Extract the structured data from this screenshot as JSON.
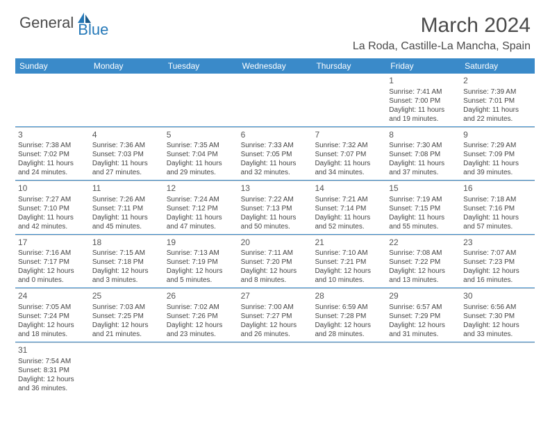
{
  "logo": {
    "general": "General",
    "blue": "Blue"
  },
  "title": {
    "month": "March 2024",
    "location": "La Roda, Castille-La Mancha, Spain"
  },
  "colors": {
    "header_bg": "#3a8ac9",
    "header_text": "#ffffff",
    "row_divider": "#3a8ac9",
    "cell_divider": "#d0d0d0",
    "text": "#444444",
    "logo_gray": "#4a4a4a",
    "logo_blue": "#2478b8",
    "background": "#ffffff"
  },
  "weekdays": [
    "Sunday",
    "Monday",
    "Tuesday",
    "Wednesday",
    "Thursday",
    "Friday",
    "Saturday"
  ],
  "weeks": [
    [
      null,
      null,
      null,
      null,
      null,
      {
        "n": "1",
        "sr": "Sunrise: 7:41 AM",
        "ss": "Sunset: 7:00 PM",
        "d1": "Daylight: 11 hours",
        "d2": "and 19 minutes."
      },
      {
        "n": "2",
        "sr": "Sunrise: 7:39 AM",
        "ss": "Sunset: 7:01 PM",
        "d1": "Daylight: 11 hours",
        "d2": "and 22 minutes."
      }
    ],
    [
      {
        "n": "3",
        "sr": "Sunrise: 7:38 AM",
        "ss": "Sunset: 7:02 PM",
        "d1": "Daylight: 11 hours",
        "d2": "and 24 minutes."
      },
      {
        "n": "4",
        "sr": "Sunrise: 7:36 AM",
        "ss": "Sunset: 7:03 PM",
        "d1": "Daylight: 11 hours",
        "d2": "and 27 minutes."
      },
      {
        "n": "5",
        "sr": "Sunrise: 7:35 AM",
        "ss": "Sunset: 7:04 PM",
        "d1": "Daylight: 11 hours",
        "d2": "and 29 minutes."
      },
      {
        "n": "6",
        "sr": "Sunrise: 7:33 AM",
        "ss": "Sunset: 7:05 PM",
        "d1": "Daylight: 11 hours",
        "d2": "and 32 minutes."
      },
      {
        "n": "7",
        "sr": "Sunrise: 7:32 AM",
        "ss": "Sunset: 7:07 PM",
        "d1": "Daylight: 11 hours",
        "d2": "and 34 minutes."
      },
      {
        "n": "8",
        "sr": "Sunrise: 7:30 AM",
        "ss": "Sunset: 7:08 PM",
        "d1": "Daylight: 11 hours",
        "d2": "and 37 minutes."
      },
      {
        "n": "9",
        "sr": "Sunrise: 7:29 AM",
        "ss": "Sunset: 7:09 PM",
        "d1": "Daylight: 11 hours",
        "d2": "and 39 minutes."
      }
    ],
    [
      {
        "n": "10",
        "sr": "Sunrise: 7:27 AM",
        "ss": "Sunset: 7:10 PM",
        "d1": "Daylight: 11 hours",
        "d2": "and 42 minutes."
      },
      {
        "n": "11",
        "sr": "Sunrise: 7:26 AM",
        "ss": "Sunset: 7:11 PM",
        "d1": "Daylight: 11 hours",
        "d2": "and 45 minutes."
      },
      {
        "n": "12",
        "sr": "Sunrise: 7:24 AM",
        "ss": "Sunset: 7:12 PM",
        "d1": "Daylight: 11 hours",
        "d2": "and 47 minutes."
      },
      {
        "n": "13",
        "sr": "Sunrise: 7:22 AM",
        "ss": "Sunset: 7:13 PM",
        "d1": "Daylight: 11 hours",
        "d2": "and 50 minutes."
      },
      {
        "n": "14",
        "sr": "Sunrise: 7:21 AM",
        "ss": "Sunset: 7:14 PM",
        "d1": "Daylight: 11 hours",
        "d2": "and 52 minutes."
      },
      {
        "n": "15",
        "sr": "Sunrise: 7:19 AM",
        "ss": "Sunset: 7:15 PM",
        "d1": "Daylight: 11 hours",
        "d2": "and 55 minutes."
      },
      {
        "n": "16",
        "sr": "Sunrise: 7:18 AM",
        "ss": "Sunset: 7:16 PM",
        "d1": "Daylight: 11 hours",
        "d2": "and 57 minutes."
      }
    ],
    [
      {
        "n": "17",
        "sr": "Sunrise: 7:16 AM",
        "ss": "Sunset: 7:17 PM",
        "d1": "Daylight: 12 hours",
        "d2": "and 0 minutes."
      },
      {
        "n": "18",
        "sr": "Sunrise: 7:15 AM",
        "ss": "Sunset: 7:18 PM",
        "d1": "Daylight: 12 hours",
        "d2": "and 3 minutes."
      },
      {
        "n": "19",
        "sr": "Sunrise: 7:13 AM",
        "ss": "Sunset: 7:19 PM",
        "d1": "Daylight: 12 hours",
        "d2": "and 5 minutes."
      },
      {
        "n": "20",
        "sr": "Sunrise: 7:11 AM",
        "ss": "Sunset: 7:20 PM",
        "d1": "Daylight: 12 hours",
        "d2": "and 8 minutes."
      },
      {
        "n": "21",
        "sr": "Sunrise: 7:10 AM",
        "ss": "Sunset: 7:21 PM",
        "d1": "Daylight: 12 hours",
        "d2": "and 10 minutes."
      },
      {
        "n": "22",
        "sr": "Sunrise: 7:08 AM",
        "ss": "Sunset: 7:22 PM",
        "d1": "Daylight: 12 hours",
        "d2": "and 13 minutes."
      },
      {
        "n": "23",
        "sr": "Sunrise: 7:07 AM",
        "ss": "Sunset: 7:23 PM",
        "d1": "Daylight: 12 hours",
        "d2": "and 16 minutes."
      }
    ],
    [
      {
        "n": "24",
        "sr": "Sunrise: 7:05 AM",
        "ss": "Sunset: 7:24 PM",
        "d1": "Daylight: 12 hours",
        "d2": "and 18 minutes."
      },
      {
        "n": "25",
        "sr": "Sunrise: 7:03 AM",
        "ss": "Sunset: 7:25 PM",
        "d1": "Daylight: 12 hours",
        "d2": "and 21 minutes."
      },
      {
        "n": "26",
        "sr": "Sunrise: 7:02 AM",
        "ss": "Sunset: 7:26 PM",
        "d1": "Daylight: 12 hours",
        "d2": "and 23 minutes."
      },
      {
        "n": "27",
        "sr": "Sunrise: 7:00 AM",
        "ss": "Sunset: 7:27 PM",
        "d1": "Daylight: 12 hours",
        "d2": "and 26 minutes."
      },
      {
        "n": "28",
        "sr": "Sunrise: 6:59 AM",
        "ss": "Sunset: 7:28 PM",
        "d1": "Daylight: 12 hours",
        "d2": "and 28 minutes."
      },
      {
        "n": "29",
        "sr": "Sunrise: 6:57 AM",
        "ss": "Sunset: 7:29 PM",
        "d1": "Daylight: 12 hours",
        "d2": "and 31 minutes."
      },
      {
        "n": "30",
        "sr": "Sunrise: 6:56 AM",
        "ss": "Sunset: 7:30 PM",
        "d1": "Daylight: 12 hours",
        "d2": "and 33 minutes."
      }
    ],
    [
      {
        "n": "31",
        "sr": "Sunrise: 7:54 AM",
        "ss": "Sunset: 8:31 PM",
        "d1": "Daylight: 12 hours",
        "d2": "and 36 minutes."
      },
      null,
      null,
      null,
      null,
      null,
      null
    ]
  ]
}
